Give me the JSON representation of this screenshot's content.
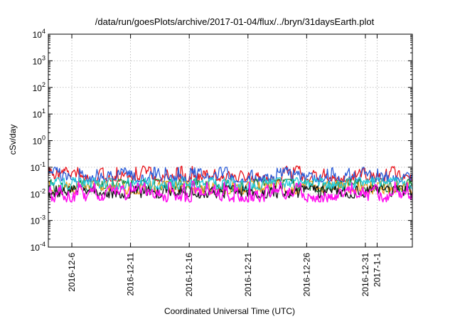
{
  "chart_data": {
    "type": "line",
    "title": "/data/run/goesPlots/archive/2017-01-04/flux/../bryn/31daysEarth.plot",
    "xlabel": "Coordinated Universal Time (UTC)",
    "ylabel": "cSv/day",
    "yscale": "log",
    "ylim": [
      0.0001,
      10000
    ],
    "y_ticks": [
      {
        "base": "10",
        "exp": "-4",
        "value": 0.0001
      },
      {
        "base": "10",
        "exp": "-3",
        "value": 0.001
      },
      {
        "base": "10",
        "exp": "-2",
        "value": 0.01
      },
      {
        "base": "10",
        "exp": "-1",
        "value": 0.1
      },
      {
        "base": "10",
        "exp": "0",
        "value": 1
      },
      {
        "base": "10",
        "exp": "1",
        "value": 10
      },
      {
        "base": "10",
        "exp": "2",
        "value": 100
      },
      {
        "base": "10",
        "exp": "3",
        "value": 1000
      },
      {
        "base": "10",
        "exp": "4",
        "value": 10000
      }
    ],
    "xlim": [
      "2016-12-04",
      "2017-01-04"
    ],
    "x_ticks": [
      {
        "label": "2016-12-6",
        "date": "2016-12-06"
      },
      {
        "label": "2016-12-11",
        "date": "2016-12-11"
      },
      {
        "label": "2016-12-16",
        "date": "2016-12-16"
      },
      {
        "label": "2016-12-21",
        "date": "2016-12-21"
      },
      {
        "label": "2016-12-26",
        "date": "2016-12-26"
      },
      {
        "label": "2016-12-31",
        "date": "2016-12-31"
      },
      {
        "label": "2017-1-1",
        "date": "2017-01-01"
      }
    ],
    "grid": true,
    "series": [
      {
        "color": "#e8141c",
        "typical": 0.045,
        "low": 0.03,
        "high": 0.11
      },
      {
        "color": "#2a5bd7",
        "typical": 0.04,
        "low": 0.028,
        "high": 0.1
      },
      {
        "color": "#1a8a3a",
        "typical": 0.02,
        "low": 0.012,
        "high": 0.035
      },
      {
        "color": "#f0a020",
        "typical": 0.018,
        "low": 0.01,
        "high": 0.03
      },
      {
        "color": "#111111",
        "typical": 0.012,
        "low": 0.007,
        "high": 0.02
      },
      {
        "color": "#20c8d8",
        "typical": 0.025,
        "low": 0.015,
        "high": 0.04
      },
      {
        "color": "#ff10f0",
        "typical": 0.01,
        "low": 0.005,
        "high": 0.03
      }
    ]
  }
}
